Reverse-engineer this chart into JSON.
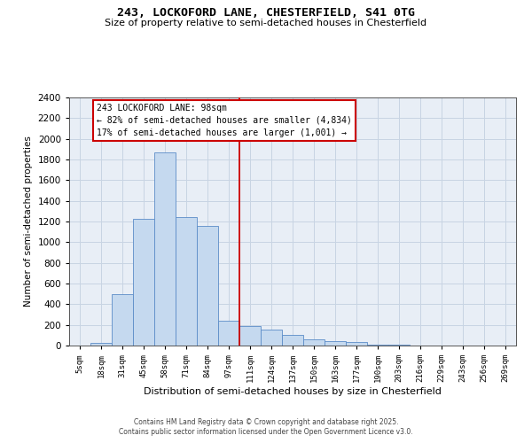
{
  "title_line1": "243, LOCKOFORD LANE, CHESTERFIELD, S41 0TG",
  "title_line2": "Size of property relative to semi-detached houses in Chesterfield",
  "xlabel": "Distribution of semi-detached houses by size in Chesterfield",
  "ylabel": "Number of semi-detached properties",
  "categories": [
    "5sqm",
    "18sqm",
    "31sqm",
    "45sqm",
    "58sqm",
    "71sqm",
    "84sqm",
    "97sqm",
    "111sqm",
    "124sqm",
    "137sqm",
    "150sqm",
    "163sqm",
    "177sqm",
    "190sqm",
    "203sqm",
    "216sqm",
    "229sqm",
    "243sqm",
    "256sqm",
    "269sqm"
  ],
  "bar_values": [
    0,
    28,
    500,
    1230,
    1870,
    1240,
    1160,
    240,
    190,
    155,
    100,
    60,
    40,
    35,
    10,
    5,
    2,
    1,
    0,
    0,
    0
  ],
  "bar_color": "#c5d9ef",
  "bar_edge_color": "#5b8cc8",
  "property_line_x": 7.5,
  "annotation_title": "243 LOCKOFORD LANE: 98sqm",
  "annotation_line2": "← 82% of semi-detached houses are smaller (4,834)",
  "annotation_line3": "17% of semi-detached houses are larger (1,001) →",
  "annotation_box_color": "#ffffff",
  "annotation_box_edge": "#cc0000",
  "red_line_color": "#cc0000",
  "ylim_max": 2400,
  "ytick_step": 200,
  "grid_color": "#c8d4e3",
  "bg_color": "#e8eef6",
  "footer_line1": "Contains HM Land Registry data © Crown copyright and database right 2025.",
  "footer_line2": "Contains public sector information licensed under the Open Government Licence v3.0."
}
